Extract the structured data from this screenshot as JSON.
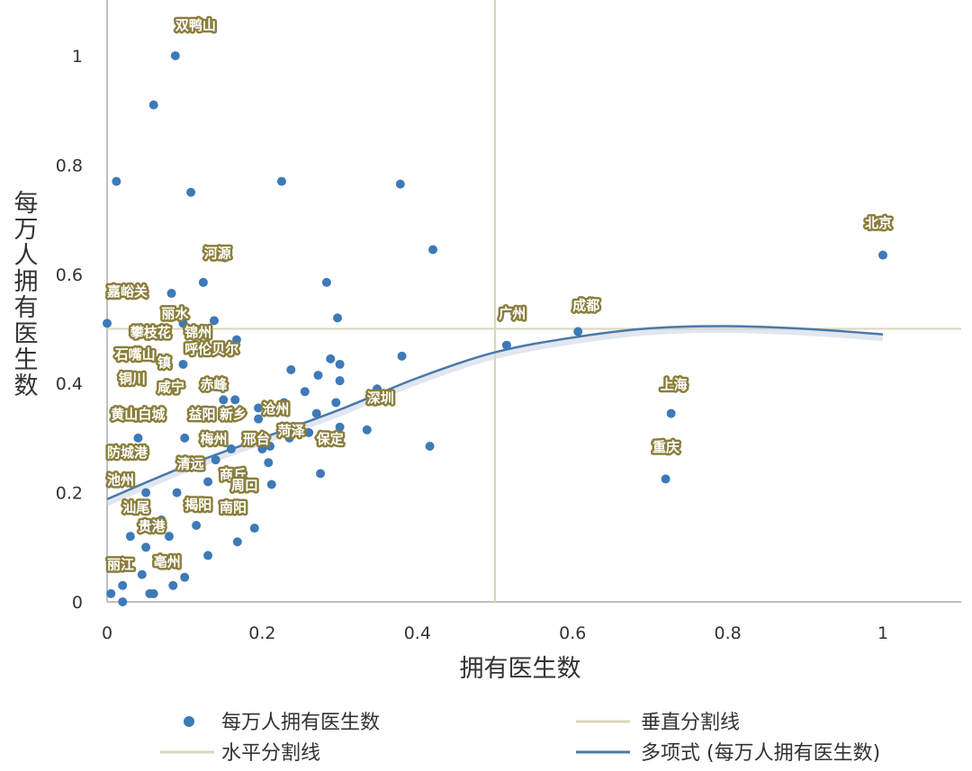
{
  "chart_data": {
    "type": "scatter",
    "xlabel": "拥有医生数",
    "ylabel": "每万人拥有医生数",
    "xlim": [
      0,
      1.1
    ],
    "ylim": [
      0,
      1.1
    ],
    "xticks": [
      "0",
      "0.2",
      "0.4",
      "0.6",
      "0.8",
      "1"
    ],
    "yticks": [
      "0",
      "0.2",
      "0.4",
      "0.6",
      "0.8",
      "1"
    ],
    "grid": false,
    "legend_position": "bottom",
    "colors": {
      "points": "#3d7ab8",
      "trend": "#4a78a8",
      "divider": "#d8d8bc",
      "label_bg": "#8a7e3c"
    },
    "series": [
      {
        "name": "每万人拥有医生数",
        "points": [
          [
            0.088,
            1.0
          ],
          [
            0.06,
            0.91
          ],
          [
            0.012,
            0.77
          ],
          [
            0.108,
            0.75
          ],
          [
            0.225,
            0.77
          ],
          [
            0.378,
            0.765
          ],
          [
            0.42,
            0.645
          ],
          [
            0.152,
            0.63
          ],
          [
            0.124,
            0.585
          ],
          [
            0.283,
            0.585
          ],
          [
            0.083,
            0.565
          ],
          [
            0.138,
            0.515
          ],
          [
            0.297,
            0.52
          ],
          [
            0.0,
            0.51
          ],
          [
            0.098,
            0.51
          ],
          [
            0.167,
            0.48
          ],
          [
            0.515,
            0.47
          ],
          [
            0.607,
            0.495
          ],
          [
            1.0,
            0.635
          ],
          [
            0.098,
            0.435
          ],
          [
            0.288,
            0.445
          ],
          [
            0.38,
            0.45
          ],
          [
            0.3,
            0.435
          ],
          [
            0.237,
            0.425
          ],
          [
            0.272,
            0.415
          ],
          [
            0.3,
            0.405
          ],
          [
            0.348,
            0.39
          ],
          [
            0.255,
            0.385
          ],
          [
            0.145,
            0.395
          ],
          [
            0.15,
            0.37
          ],
          [
            0.165,
            0.37
          ],
          [
            0.228,
            0.365
          ],
          [
            0.295,
            0.365
          ],
          [
            0.195,
            0.355
          ],
          [
            0.21,
            0.36
          ],
          [
            0.27,
            0.345
          ],
          [
            0.195,
            0.335
          ],
          [
            0.3,
            0.32
          ],
          [
            0.335,
            0.315
          ],
          [
            0.26,
            0.31
          ],
          [
            0.235,
            0.3
          ],
          [
            0.416,
            0.285
          ],
          [
            0.2,
            0.28
          ],
          [
            0.21,
            0.285
          ],
          [
            0.208,
            0.255
          ],
          [
            0.275,
            0.235
          ],
          [
            0.212,
            0.215
          ],
          [
            0.72,
            0.225
          ],
          [
            0.727,
            0.345
          ],
          [
            0.19,
            0.135
          ],
          [
            0.168,
            0.11
          ],
          [
            0.13,
            0.085
          ],
          [
            0.1,
            0.045
          ],
          [
            0.085,
            0.03
          ],
          [
            0.06,
            0.015
          ],
          [
            0.055,
            0.015
          ],
          [
            0.005,
            0.015
          ],
          [
            0.02,
            0.0
          ],
          [
            0.02,
            0.03
          ],
          [
            0.045,
            0.05
          ],
          [
            0.05,
            0.1
          ],
          [
            0.07,
            0.15
          ],
          [
            0.09,
            0.2
          ],
          [
            0.11,
            0.25
          ],
          [
            0.04,
            0.3
          ],
          [
            0.06,
            0.35
          ],
          [
            0.08,
            0.4
          ],
          [
            0.03,
            0.45
          ],
          [
            0.05,
            0.2
          ],
          [
            0.1,
            0.3
          ],
          [
            0.12,
            0.35
          ],
          [
            0.13,
            0.22
          ],
          [
            0.15,
            0.18
          ],
          [
            0.03,
            0.12
          ],
          [
            0.08,
            0.12
          ],
          [
            0.115,
            0.14
          ],
          [
            0.16,
            0.28
          ],
          [
            0.14,
            0.26
          ]
        ]
      },
      {
        "name": "垂直分割线",
        "x": 0.5
      },
      {
        "name": "水平分割线",
        "y": 0.5
      },
      {
        "name": "多项式 (每万人拥有医生数)",
        "x": [
          0,
          0.1,
          0.2,
          0.3,
          0.4,
          0.5,
          0.6,
          0.7,
          0.8,
          0.9,
          1.0
        ],
        "values": [
          0.188,
          0.248,
          0.3,
          0.352,
          0.41,
          0.457,
          0.484,
          0.501,
          0.505,
          0.5,
          0.49
        ]
      }
    ],
    "annotations": [
      {
        "text": "双鸭山",
        "x": 0.088,
        "y": 1.048
      },
      {
        "text": "河源",
        "x": 0.125,
        "y": 0.63
      },
      {
        "text": "嘉峪关",
        "x": 0.0,
        "y": 0.56
      },
      {
        "text": "丽水",
        "x": 0.07,
        "y": 0.52
      },
      {
        "text": "攀枝花",
        "x": 0.03,
        "y": 0.485
      },
      {
        "text": "锦州",
        "x": 0.1,
        "y": 0.485
      },
      {
        "text": "呼伦贝尔",
        "x": 0.1,
        "y": 0.455
      },
      {
        "text": "石嘴山",
        "x": 0.01,
        "y": 0.445
      },
      {
        "text": "镇",
        "x": 0.065,
        "y": 0.43
      },
      {
        "text": "铜川",
        "x": 0.015,
        "y": 0.4
      },
      {
        "text": "咸宁",
        "x": 0.065,
        "y": 0.385
      },
      {
        "text": "赤峰",
        "x": 0.12,
        "y": 0.39
      },
      {
        "text": "黄山",
        "x": 0.005,
        "y": 0.335
      },
      {
        "text": "白城",
        "x": 0.04,
        "y": 0.335
      },
      {
        "text": "益阳",
        "x": 0.105,
        "y": 0.335
      },
      {
        "text": "新乡",
        "x": 0.145,
        "y": 0.335
      },
      {
        "text": "沧州",
        "x": 0.2,
        "y": 0.345
      },
      {
        "text": "梅州",
        "x": 0.12,
        "y": 0.29
      },
      {
        "text": "邢台",
        "x": 0.175,
        "y": 0.29
      },
      {
        "text": "菏泽",
        "x": 0.22,
        "y": 0.305
      },
      {
        "text": "深圳",
        "x": 0.335,
        "y": 0.365
      },
      {
        "text": "保定",
        "x": 0.27,
        "y": 0.29
      },
      {
        "text": "防城港",
        "x": 0.0,
        "y": 0.265
      },
      {
        "text": "清远",
        "x": 0.09,
        "y": 0.245
      },
      {
        "text": "商丘",
        "x": 0.145,
        "y": 0.225
      },
      {
        "text": "池州",
        "x": 0.0,
        "y": 0.215
      },
      {
        "text": "周口",
        "x": 0.16,
        "y": 0.205
      },
      {
        "text": "汕尾",
        "x": 0.02,
        "y": 0.165
      },
      {
        "text": "揭阳",
        "x": 0.1,
        "y": 0.17
      },
      {
        "text": "南阳",
        "x": 0.145,
        "y": 0.165
      },
      {
        "text": "贵港",
        "x": 0.04,
        "y": 0.13
      },
      {
        "text": "丽江",
        "x": 0.0,
        "y": 0.06
      },
      {
        "text": "亳州",
        "x": 0.06,
        "y": 0.065
      },
      {
        "text": "广州",
        "x": 0.505,
        "y": 0.52
      },
      {
        "text": "成都",
        "x": 0.6,
        "y": 0.535
      },
      {
        "text": "北京",
        "x": 0.977,
        "y": 0.685
      },
      {
        "text": "上海",
        "x": 0.713,
        "y": 0.39
      },
      {
        "text": "重庆",
        "x": 0.703,
        "y": 0.275
      }
    ]
  }
}
